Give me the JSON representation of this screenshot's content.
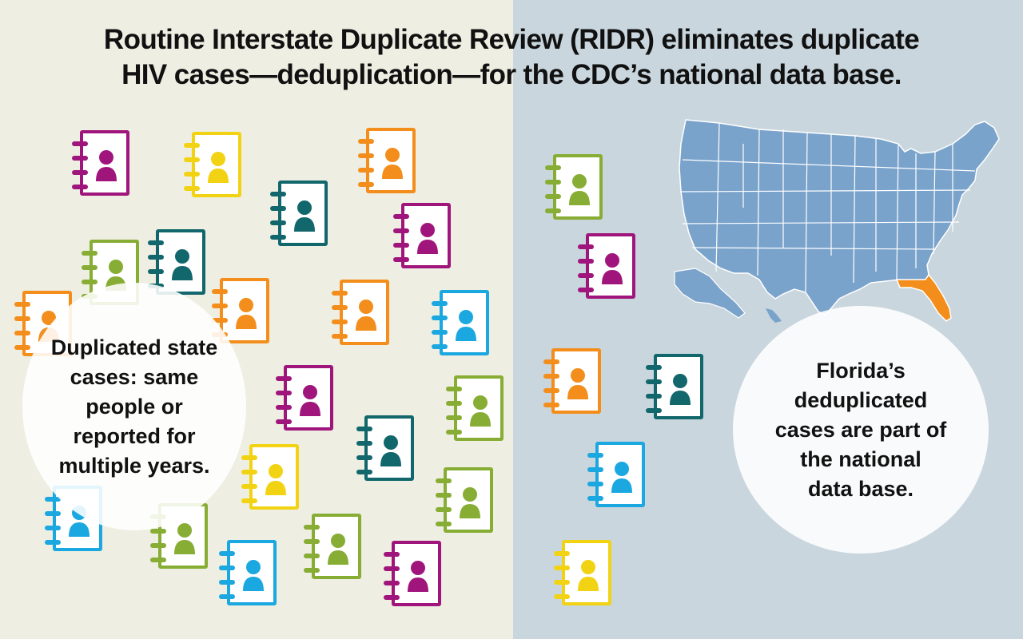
{
  "title": {
    "line1": "Routine Interstate Duplicate Review (RIDR) eliminates duplicate",
    "line2": "HIV cases—deduplication—for the CDC’s national data base."
  },
  "left_bubble": {
    "line1": "Duplicated state",
    "line2": "cases: same",
    "line3": "people or",
    "line4": "reported for",
    "line5": "multiple years."
  },
  "right_bubble": {
    "line1": "Florida’s",
    "line2": "deduplicated",
    "line3": "cases are part of",
    "line4": "the national",
    "line5": "data base."
  },
  "colors": {
    "magenta": "#a0157c",
    "yellow": "#f2d314",
    "orange": "#f38e1c",
    "teal": "#11676b",
    "green": "#87ad34",
    "blue": "#1ba8e0",
    "map_fill": "#7aa3cc",
    "florida": "#f38e1c"
  },
  "icons": [
    "case-file-icon",
    "person-icon",
    "us-map-icon"
  ]
}
